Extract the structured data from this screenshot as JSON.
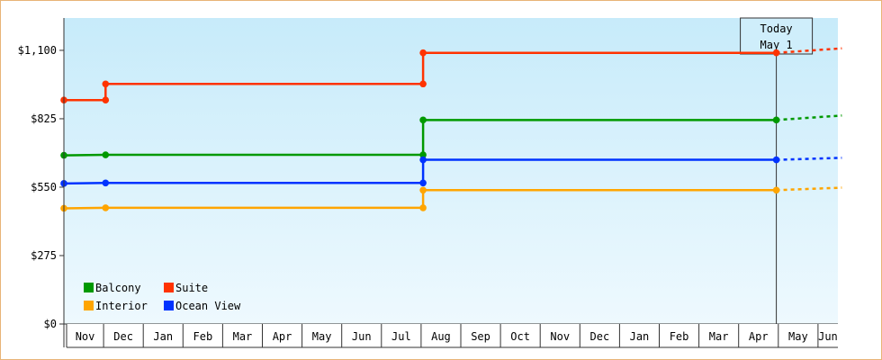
{
  "chart_data": {
    "type": "line",
    "y_ticks": [
      {
        "value": 0,
        "label": "$0"
      },
      {
        "value": 275,
        "label": "$275"
      },
      {
        "value": 550,
        "label": "$550"
      },
      {
        "value": 825,
        "label": "$825"
      },
      {
        "value": 1100,
        "label": "$1,100"
      }
    ],
    "ylim": [
      0,
      1230
    ],
    "x_labels": [
      "Nov",
      "Dec",
      "Jan",
      "Feb",
      "Mar",
      "Apr",
      "May",
      "Jun",
      "Jul",
      "Aug",
      "Sep",
      "Oct",
      "Nov",
      "Dec",
      "Jan",
      "Feb",
      "Mar",
      "Apr",
      "May",
      "Jun"
    ],
    "x_domain": [
      0,
      19.6
    ],
    "today": {
      "label_line1": "Today",
      "label_line2": "May 1",
      "x": 17.95
    },
    "grid": false,
    "legend_position": "bottom-left",
    "series": [
      {
        "name": "Suite",
        "color": "#ff3300",
        "points": [
          [
            0,
            900
          ],
          [
            1.05,
            900
          ],
          [
            1.05,
            965
          ],
          [
            9.05,
            965
          ],
          [
            9.05,
            1090
          ],
          [
            17.95,
            1090
          ]
        ],
        "forecast": [
          [
            17.95,
            1090
          ],
          [
            19.6,
            1108
          ]
        ]
      },
      {
        "name": "Balcony",
        "color": "#009900",
        "points": [
          [
            0,
            678
          ],
          [
            1.05,
            680
          ],
          [
            9.05,
            680
          ],
          [
            9.05,
            820
          ],
          [
            17.95,
            820
          ]
        ],
        "forecast": [
          [
            17.95,
            820
          ],
          [
            19.6,
            838
          ]
        ]
      },
      {
        "name": "Ocean View",
        "color": "#0033ff",
        "points": [
          [
            0,
            565
          ],
          [
            1.05,
            567
          ],
          [
            9.05,
            567
          ],
          [
            9.05,
            660
          ],
          [
            17.95,
            660
          ]
        ],
        "forecast": [
          [
            17.95,
            660
          ],
          [
            19.6,
            668
          ]
        ]
      },
      {
        "name": "Interior",
        "color": "#ffa500",
        "points": [
          [
            0,
            465
          ],
          [
            1.05,
            467
          ],
          [
            9.05,
            467
          ],
          [
            9.05,
            538
          ],
          [
            17.95,
            538
          ]
        ],
        "forecast": [
          [
            17.95,
            538
          ],
          [
            19.6,
            548
          ]
        ]
      }
    ],
    "legend": [
      {
        "name": "Balcony",
        "color": "#009900"
      },
      {
        "name": "Suite",
        "color": "#ff3300"
      },
      {
        "name": "Interior",
        "color": "#ffa500"
      },
      {
        "name": "Ocean View",
        "color": "#0033ff"
      }
    ]
  }
}
